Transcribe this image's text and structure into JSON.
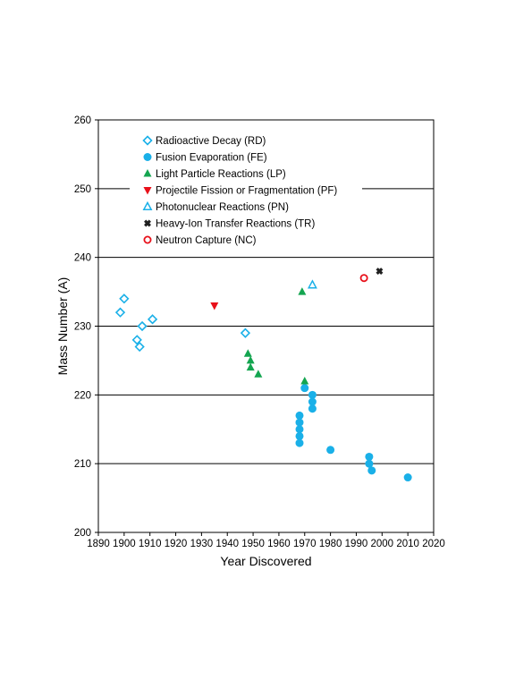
{
  "chart_data": {
    "type": "scatter",
    "title": "",
    "xlabel": "Year Discovered",
    "ylabel": "Mass Number (A)",
    "xlim": [
      1890,
      2020
    ],
    "ylim": [
      200,
      260
    ],
    "xticks": [
      1890,
      1900,
      1910,
      1920,
      1930,
      1940,
      1950,
      1960,
      1970,
      1980,
      1990,
      2000,
      2010,
      2020
    ],
    "yticks": [
      200,
      210,
      220,
      230,
      240,
      250,
      260
    ],
    "grid": "horizontal",
    "legend_position": "top-left",
    "series": [
      {
        "name": "Radioactive Decay (RD)",
        "marker": "diamond-open",
        "color": "#1ab0e8",
        "points": [
          [
            1898.5,
            232
          ],
          [
            1900,
            234
          ],
          [
            1905,
            228
          ],
          [
            1906,
            227
          ],
          [
            1907,
            230
          ],
          [
            1911,
            231
          ],
          [
            1947,
            229
          ]
        ]
      },
      {
        "name": "Fusion Evaporation (FE)",
        "marker": "circle-filled",
        "color": "#1ab0e8",
        "points": [
          [
            1968,
            213
          ],
          [
            1968,
            214
          ],
          [
            1968,
            215
          ],
          [
            1968,
            216
          ],
          [
            1968,
            217
          ],
          [
            1970,
            221
          ],
          [
            1973,
            218
          ],
          [
            1973,
            219
          ],
          [
            1973,
            220
          ],
          [
            1980,
            212
          ],
          [
            1995,
            210
          ],
          [
            1995,
            211
          ],
          [
            1996,
            209
          ],
          [
            2010,
            208
          ]
        ]
      },
      {
        "name": "Light Particle Reactions (LP)",
        "marker": "triangle-up-filled",
        "color": "#14a550",
        "points": [
          [
            1948,
            226
          ],
          [
            1949,
            224
          ],
          [
            1949,
            225
          ],
          [
            1952,
            223
          ],
          [
            1969,
            235
          ],
          [
            1970,
            222
          ]
        ]
      },
      {
        "name": "Projectile Fission or Fragmentation (PF)",
        "marker": "triangle-down-filled",
        "color": "#e8101a",
        "points": [
          [
            1935,
            233
          ]
        ]
      },
      {
        "name": "Photonuclear Reactions (PN)",
        "marker": "triangle-up-open",
        "color": "#1ab0e8",
        "points": [
          [
            1973,
            236
          ]
        ]
      },
      {
        "name": "Heavy-Ion Transfer Reactions (TR)",
        "marker": "cross-filled",
        "color": "#202020",
        "points": [
          [
            1999,
            238
          ]
        ]
      },
      {
        "name": "Neutron Capture (NC)",
        "marker": "circle-open",
        "color": "#e8101a",
        "points": [
          [
            1993,
            237
          ]
        ]
      }
    ]
  }
}
